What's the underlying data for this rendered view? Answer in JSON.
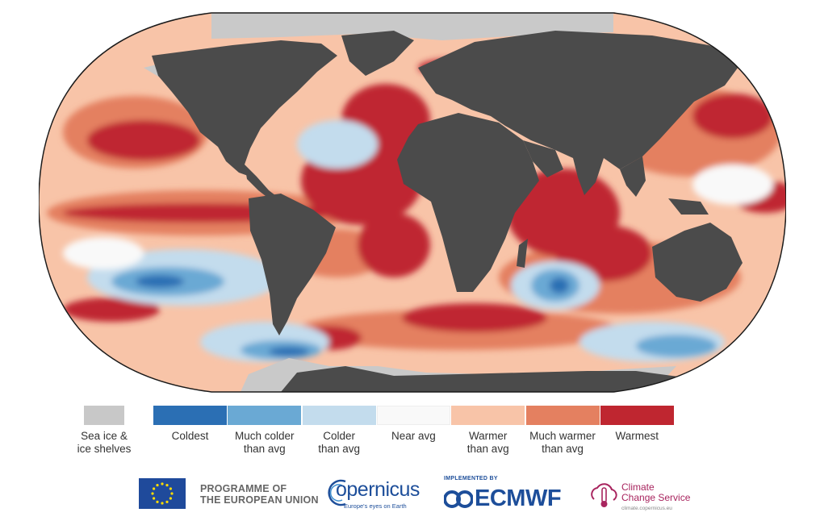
{
  "map": {
    "colors": {
      "ocean_base": "#f8c4a8",
      "land": "#4b4b4b",
      "sea_ice": "#c9c9c9",
      "outline": "#1a1a1a"
    }
  },
  "legend": {
    "sea_ice": {
      "label": "Sea ice &\nice shelves",
      "color": "#c8c8c8"
    },
    "categories": [
      {
        "label": "Coldest",
        "color": "#2b6fb4"
      },
      {
        "label": "Much colder\nthan avg",
        "color": "#6aa9d4"
      },
      {
        "label": "Colder\nthan avg",
        "color": "#c3dced"
      },
      {
        "label": "Near avg",
        "color": "#f9f9f9"
      },
      {
        "label": "Warmer\nthan avg",
        "color": "#f8c4a8"
      },
      {
        "label": "Much warmer\nthan avg",
        "color": "#e48060"
      },
      {
        "label": "Warmest",
        "color": "#bf2630"
      }
    ]
  },
  "logos": {
    "eu": {
      "text": "PROGRAMME OF\nTHE EUROPEAN UNION",
      "flag_color": "#1f4a9b",
      "star_color": "#ffdd00"
    },
    "copernicus": {
      "name": "opernicus",
      "tagline": "Europe's eyes on Earth"
    },
    "ecmwf": {
      "implemented_by": "IMPLEMENTED BY",
      "name": "ECMWF"
    },
    "c3s": {
      "name": "Climate\nChange Service",
      "url": "climate.copernicus.eu"
    }
  }
}
